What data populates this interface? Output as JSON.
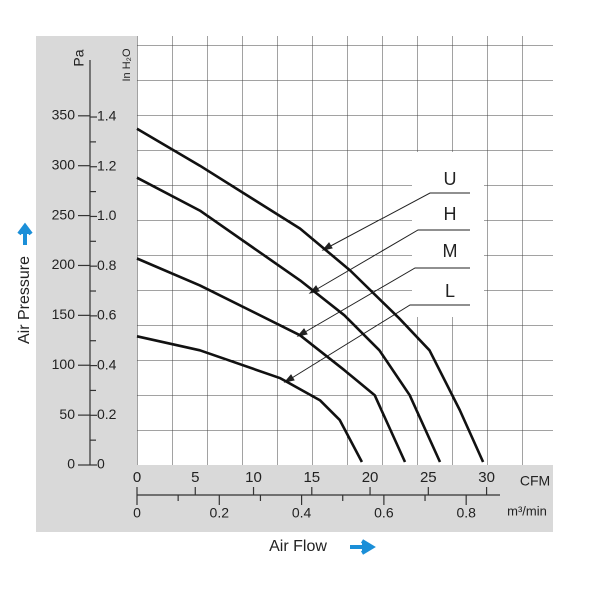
{
  "chart_data": {
    "type": "line",
    "x_label": "Air Flow",
    "y_label": "Air Pressure",
    "x_unit": "CFM",
    "x2_unit": "m³/min",
    "y_unit": "Pa",
    "y2_unit": "In H₂O",
    "xlim": [
      0,
      35.7
    ],
    "xticks": [
      0,
      5,
      10,
      15,
      20,
      25,
      30
    ],
    "x2lim": [
      0,
      1.011
    ],
    "x2ticks": [
      0,
      0.2,
      0.4,
      0.6,
      0.8
    ],
    "ylim": [
      0,
      430
    ],
    "yticks": [
      0,
      50,
      100,
      150,
      200,
      250,
      300,
      350
    ],
    "y2lim": [
      0,
      1.726
    ],
    "y2ticks": [
      0,
      0.2,
      0.4,
      0.6,
      0.8,
      {
        "value": 1,
        "label": "1.0"
      },
      1.2,
      1.4
    ],
    "grid": true,
    "series": [
      {
        "name": "U",
        "color": "#111111",
        "x": [
          0,
          5.4,
          14,
          18.3,
          22.5,
          25.1,
          27.7,
          29.7
        ],
        "values": [
          337,
          300,
          237,
          195,
          147,
          115,
          55,
          3
        ]
      },
      {
        "name": "H",
        "color": "#111111",
        "x": [
          0,
          5.4,
          14,
          17.8,
          20.8,
          23.4,
          26
        ],
        "values": [
          288,
          255,
          185,
          150,
          115,
          70,
          3
        ]
      },
      {
        "name": "M",
        "color": "#111111",
        "x": [
          0,
          5.4,
          14,
          17.8,
          20.4,
          23
        ],
        "values": [
          207,
          180,
          130,
          95,
          70,
          3
        ]
      },
      {
        "name": "L",
        "color": "#111111",
        "x": [
          0,
          5.4,
          12.3,
          15.7,
          17.4,
          19.3
        ],
        "values": [
          129,
          115,
          87,
          65,
          45,
          3
        ]
      }
    ]
  }
}
